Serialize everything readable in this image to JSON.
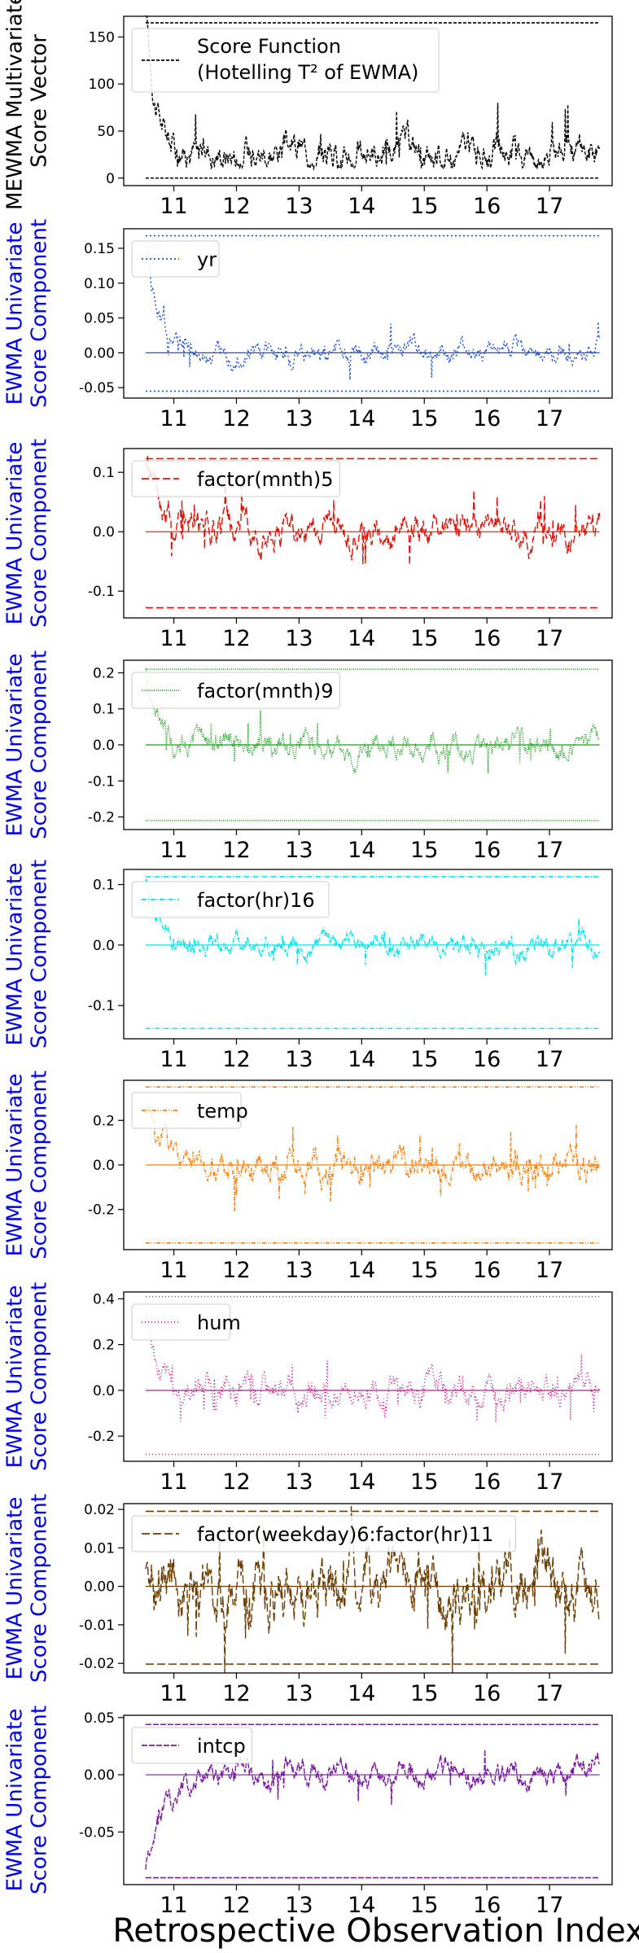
{
  "figure": {
    "xlabel": "Retrospective Observation Index",
    "xticks": [
      "11",
      "12",
      "13",
      "14",
      "15",
      "16",
      "17"
    ]
  },
  "chart_data": [
    {
      "type": "line",
      "ylabel": [
        "MEWMA Multivariate",
        "Score Vector"
      ],
      "ylabel_color": "#000000",
      "legend": [
        "Score Function",
        "(Hotelling T² of EWMA)"
      ],
      "legend_sup": true,
      "color": "#000000",
      "dash": "4,2",
      "yticks": [
        "0",
        "50",
        "100",
        "150"
      ],
      "ytick_values": [
        0,
        50,
        100,
        150
      ],
      "ylim": [
        -8,
        172
      ],
      "xlim": [
        10.2,
        18.0
      ],
      "limits": [
        165,
        0
      ],
      "center": null,
      "trace": {
        "start": 10.55,
        "end": 17.8,
        "base": 30,
        "noise": 10,
        "spike": 160,
        "decay": 0.15,
        "floor": 20
      }
    },
    {
      "type": "line",
      "ylabel": [
        "EWMA Univariate",
        "Score Component"
      ],
      "ylabel_color": "#0000ee",
      "legend": [
        "yr"
      ],
      "color": "#1f4fd6",
      "dash": "2,3",
      "yticks": [
        "-0.05",
        "0.00",
        "0.05",
        "0.10",
        "0.15"
      ],
      "ytick_values": [
        -0.05,
        0,
        0.05,
        0.1,
        0.15
      ],
      "ylim": [
        -0.065,
        0.178
      ],
      "xlim": [
        10.2,
        18.0
      ],
      "limits": [
        0.168,
        -0.055
      ],
      "center": 0,
      "trace": {
        "start": 10.55,
        "end": 17.8,
        "base": 0,
        "noise": 0.008,
        "spike": 0.16,
        "decay": 0.2
      }
    },
    {
      "type": "line",
      "ylabel": [
        "EWMA Univariate",
        "Score Component"
      ],
      "ylabel_color": "#0000ee",
      "legend": [
        "factor(mnth)5"
      ],
      "color": "#e3120b",
      "dash": "9,4",
      "yticks": [
        "-0.1",
        "0.0",
        "0.1"
      ],
      "ytick_values": [
        -0.1,
        0,
        0.1
      ],
      "ylim": [
        -0.145,
        0.14
      ],
      "xlim": [
        10.2,
        18.0
      ],
      "limits": [
        0.123,
        -0.128
      ],
      "center": 0,
      "trace": {
        "start": 10.55,
        "end": 17.8,
        "base": 0,
        "noise": 0.015,
        "spike": 0.12,
        "decay": 0.3
      }
    },
    {
      "type": "line",
      "ylabel": [
        "EWMA Univariate",
        "Score Component"
      ],
      "ylabel_color": "#0000ee",
      "legend": [
        "factor(mnth)9"
      ],
      "color": "#1e9e1e",
      "dash": "1,1.5",
      "yticks": [
        "-0.2",
        "-0.1",
        "0.0",
        "0.1",
        "0.2"
      ],
      "ytick_values": [
        -0.2,
        -0.1,
        0,
        0.1,
        0.2
      ],
      "ylim": [
        -0.235,
        0.235
      ],
      "xlim": [
        10.2,
        18.0
      ],
      "limits": [
        0.21,
        -0.21
      ],
      "center": 0,
      "trace": {
        "start": 10.55,
        "end": 17.8,
        "base": 0,
        "noise": 0.02,
        "spike": 0.21,
        "decay": 0.15
      }
    },
    {
      "type": "line",
      "ylabel": [
        "EWMA Univariate",
        "Score Component"
      ],
      "ylabel_color": "#0000ee",
      "legend": [
        "factor(hr)16"
      ],
      "color": "#00e5ee",
      "dash": "6,2,1,2",
      "yticks": [
        "-0.1",
        "0.0",
        "0.1"
      ],
      "ytick_values": [
        -0.1,
        0,
        0.1
      ],
      "ylim": [
        -0.155,
        0.125
      ],
      "xlim": [
        10.2,
        18.0
      ],
      "limits": [
        0.113,
        -0.138
      ],
      "center": 0,
      "trace": {
        "start": 10.55,
        "end": 17.8,
        "base": 0,
        "noise": 0.01,
        "spike": 0.1,
        "decay": 0.2
      }
    },
    {
      "type": "line",
      "ylabel": [
        "EWMA Univariate",
        "Score Component"
      ],
      "ylabel_color": "#0000ee",
      "legend": [
        "temp"
      ],
      "color": "#ff7f0e",
      "dash": "5,2,1,2,1,2",
      "yticks": [
        "-0.2",
        "0.0",
        "0.2"
      ],
      "ytick_values": [
        -0.2,
        0,
        0.2
      ],
      "ylim": [
        -0.38,
        0.38
      ],
      "xlim": [
        10.2,
        18.0
      ],
      "limits": [
        0.35,
        -0.35
      ],
      "center": 0,
      "trace": {
        "start": 10.55,
        "end": 17.8,
        "base": 0,
        "noise": 0.04,
        "spike": 0.3,
        "decay": 0.3
      }
    },
    {
      "type": "line",
      "ylabel": [
        "EWMA Univariate",
        "Score Component"
      ],
      "ylabel_color": "#0000ee",
      "legend": [
        "hum"
      ],
      "color": "#c71585",
      "dash": "1,3",
      "yticks": [
        "-0.2",
        "0.0",
        "0.2",
        "0.4"
      ],
      "ytick_values": [
        -0.2,
        0,
        0.2,
        0.4
      ],
      "ylim": [
        -0.31,
        0.43
      ],
      "xlim": [
        10.2,
        18.0
      ],
      "limits": [
        0.41,
        -0.28
      ],
      "center": 0,
      "trace": {
        "start": 10.55,
        "end": 17.8,
        "base": 0,
        "noise": 0.035,
        "spike": 0.38,
        "decay": 0.15
      }
    },
    {
      "type": "line",
      "ylabel": [
        "EWMA Univariate",
        "Score Component"
      ],
      "ylabel_color": "#0000ee",
      "legend": [
        "factor(weekday)6:factor(hr)11"
      ],
      "color": "#6b3d00",
      "dash": "10,4",
      "yticks": [
        "-0.02",
        "-0.01",
        "0.00",
        "0.01",
        "0.02"
      ],
      "ytick_values": [
        -0.02,
        -0.01,
        0,
        0.01,
        0.02
      ],
      "ylim": [
        -0.0225,
        0.0215
      ],
      "xlim": [
        10.2,
        18.0
      ],
      "limits": [
        0.0195,
        -0.0202
      ],
      "center": 0,
      "trace": {
        "start": 10.55,
        "end": 17.8,
        "base": 0,
        "noise": 0.005,
        "spike": 0.005,
        "decay": 0.5
      }
    },
    {
      "type": "line",
      "ylabel": [
        "EWMA Univariate",
        "Score Component"
      ],
      "ylabel_color": "#0000ee",
      "legend": [
        "intcp"
      ],
      "color": "#7a1fa2",
      "dash": "7,2",
      "yticks": [
        "-0.05",
        "0.00",
        "0.05"
      ],
      "ytick_values": [
        -0.05,
        0,
        0.05
      ],
      "ylim": [
        -0.096,
        0.052
      ],
      "xlim": [
        10.2,
        18.0
      ],
      "limits": [
        0.044,
        -0.09
      ],
      "center": 0,
      "trace": {
        "start": 10.55,
        "end": 17.8,
        "base": 0.0,
        "noise": 0.006,
        "spike": -0.085,
        "decay": 0.25
      }
    }
  ]
}
